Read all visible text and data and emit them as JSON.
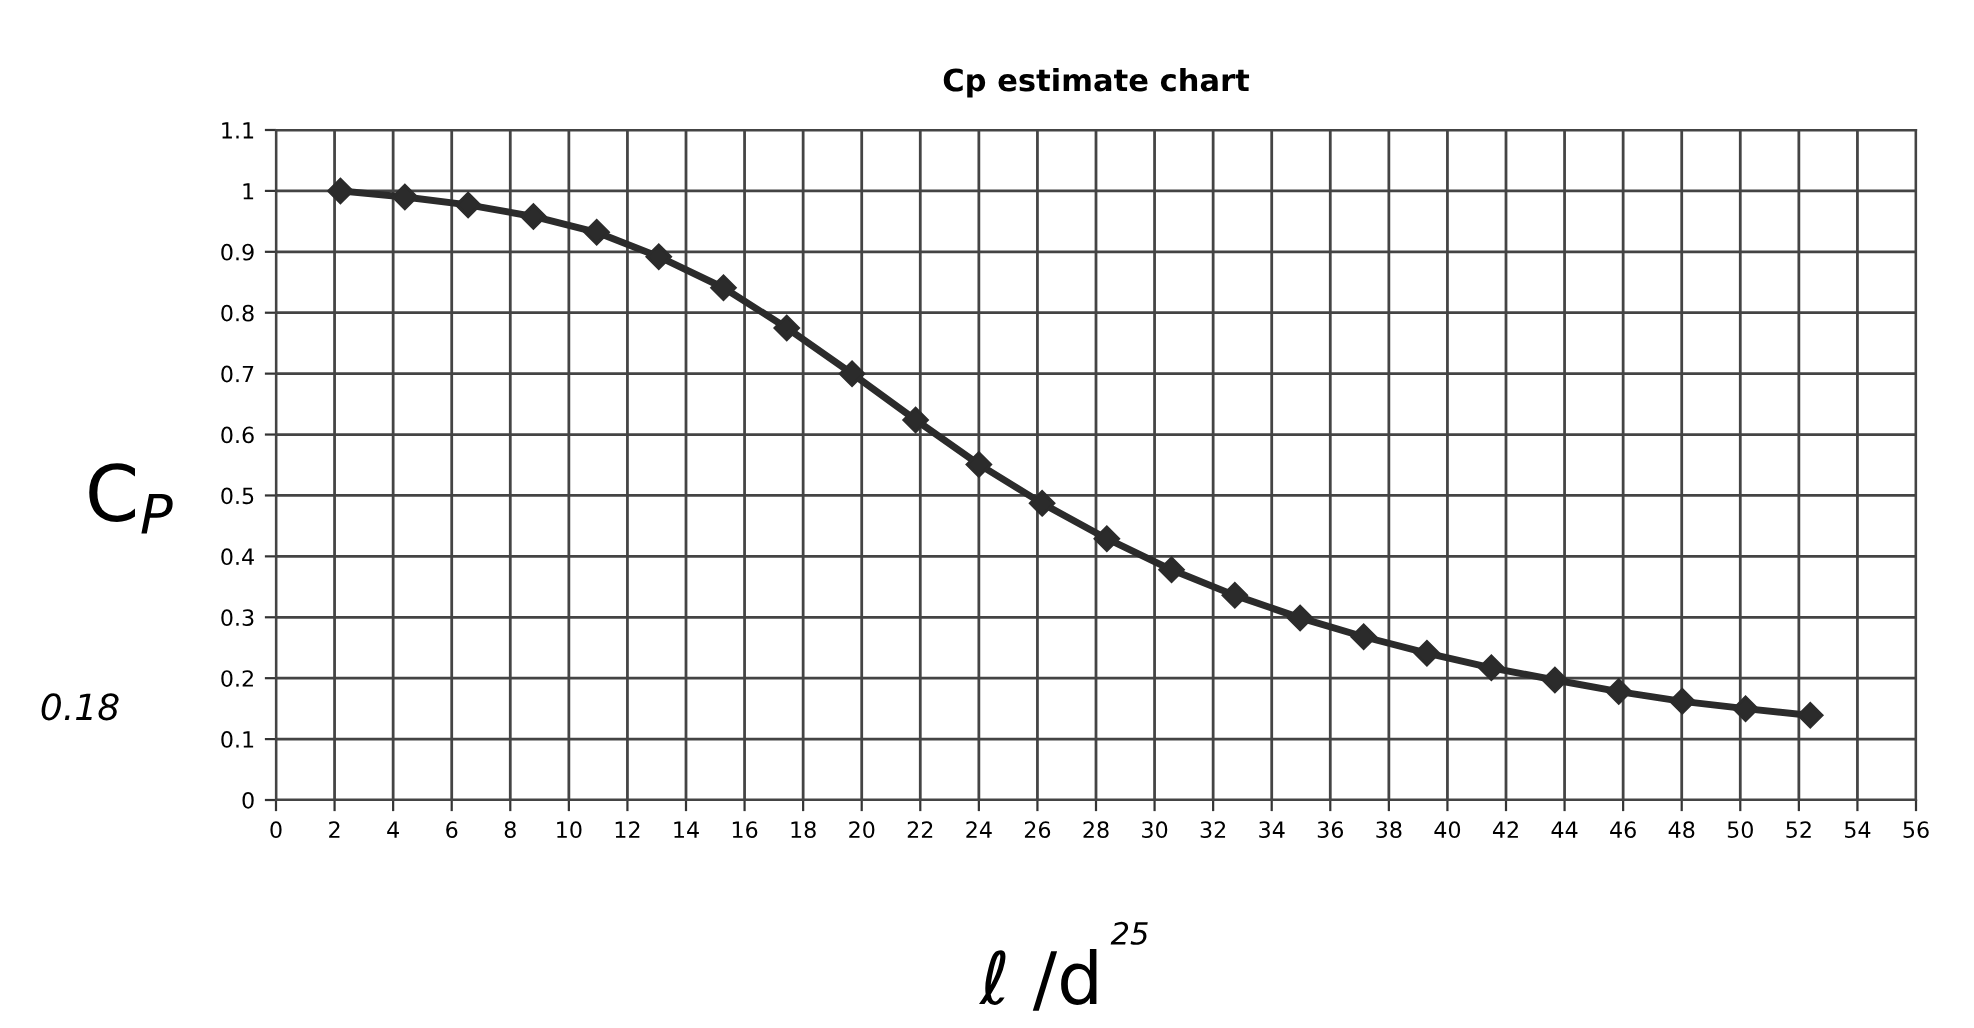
{
  "chart_data": {
    "type": "line",
    "title": "Cp estimate chart",
    "xlabel": "ℓ /d",
    "ylabel": "C$_{P}$",
    "series": [
      {
        "color": "#2b2b2b",
        "x": [
          2.2,
          4.4,
          6.56,
          8.79,
          10.95,
          13.07,
          15.28,
          17.44,
          19.67,
          21.84,
          24.0,
          26.16,
          28.37,
          30.58,
          32.74,
          34.97,
          37.14,
          39.3,
          41.5,
          43.67,
          45.85,
          48.02,
          50.18,
          52.39
        ],
        "values": [
          1.0,
          0.99,
          0.977,
          0.958,
          0.932,
          0.892,
          0.841,
          0.775,
          0.7,
          0.624,
          0.551,
          0.487,
          0.429,
          0.378,
          0.336,
          0.299,
          0.268,
          0.241,
          0.217,
          0.197,
          0.178,
          0.162,
          0.15,
          0.139
        ]
      }
    ],
    "marker": "diamond",
    "line_style": "solid",
    "grid": true,
    "xlim": [
      0,
      56
    ],
    "xticks": [
      0,
      2,
      4,
      6,
      8,
      10,
      12,
      14,
      16,
      18,
      20,
      22,
      24,
      26,
      28,
      30,
      32,
      34,
      36,
      38,
      40,
      42,
      44,
      46,
      48,
      50,
      52,
      54,
      56
    ],
    "ylim": [
      0,
      1.1
    ],
    "yticks": [
      0,
      0.1,
      0.2,
      0.3,
      0.4,
      0.5,
      0.6,
      0.7,
      0.8,
      0.9,
      1,
      1.1
    ],
    "annotations": [
      "0.18",
      "25"
    ]
  }
}
